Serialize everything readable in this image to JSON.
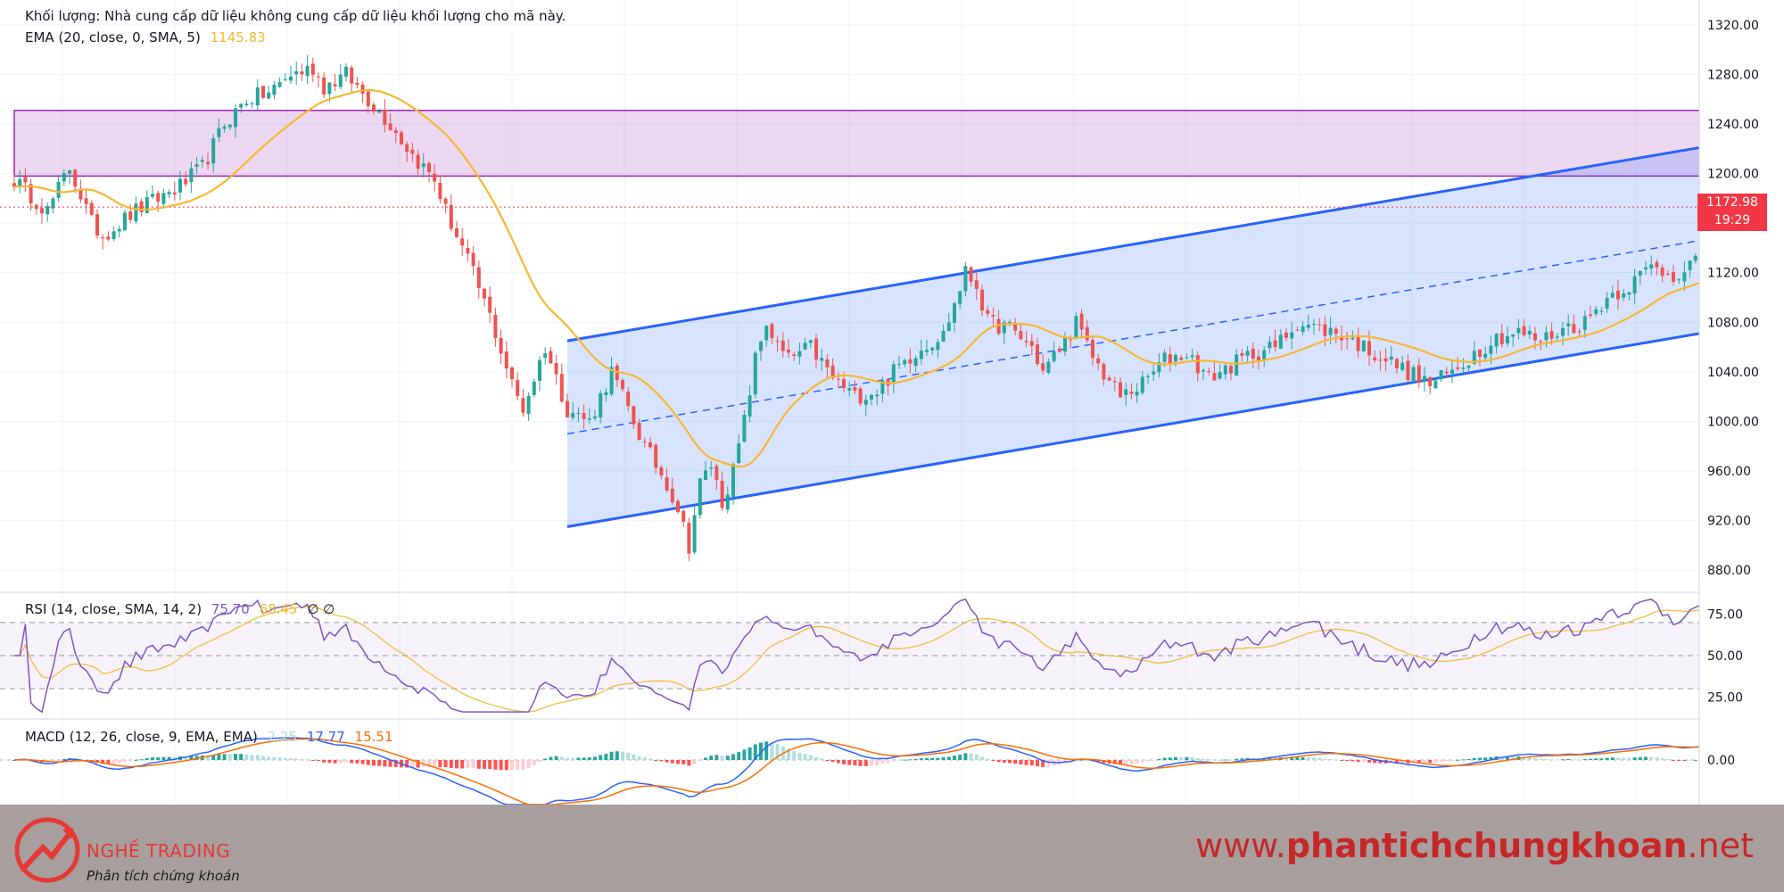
{
  "header": {
    "volume_notice": "Khối lượng: Nhà cung cấp dữ liệu không cung cấp dữ liệu khối lượng cho mã này.",
    "ema_label": "EMA (20, close, 0, SMA, 5)",
    "ema_value": "1145.83"
  },
  "rsi_header": {
    "label": "RSI (14, close, SMA, 14, 2)",
    "rsi_value": "75.70",
    "ma_value": "68.45",
    "extra": "∅  ∅"
  },
  "macd_header": {
    "label": "MACD (12, 26, close, 9, EMA, EMA)",
    "hist_value": "2.25",
    "macd_value": "17.77",
    "signal_value": "15.51"
  },
  "price_label": {
    "price": "1172.98",
    "countdown": "19:29"
  },
  "footer": {
    "brand": "NGHỀ TRADING",
    "tagline": "Phân tích chứng khoán",
    "website_prefix": "www.",
    "website_bold": "phantichchungkhoan",
    "website_suffix": ".net"
  },
  "colors": {
    "up": "#26a69a",
    "down": "#ef5350",
    "ema": "#f7b731",
    "channel": "#2962ff",
    "zone": "#9c27b0",
    "rsi": "#7e57c2",
    "macd": "#2962ff",
    "signal": "#ff6d00"
  },
  "chart_data": [
    {
      "type": "candlestick",
      "ylim": [
        865,
        1330
      ],
      "y_ticks": [
        "1320.00",
        "1280.00",
        "1240.00",
        "1200.00",
        "1160.00",
        "1120.00",
        "1080.00",
        "1040.00",
        "1000.00",
        "960.00",
        "920.00",
        "880.00"
      ],
      "anchors": [
        [
          0,
          1195
        ],
        [
          6,
          1170
        ],
        [
          10,
          1205
        ],
        [
          14,
          1160
        ],
        [
          16,
          1150
        ],
        [
          22,
          1170
        ],
        [
          26,
          1180
        ],
        [
          30,
          1190
        ],
        [
          34,
          1205
        ],
        [
          38,
          1240
        ],
        [
          42,
          1260
        ],
        [
          46,
          1265
        ],
        [
          50,
          1280
        ],
        [
          54,
          1285
        ],
        [
          56,
          1270
        ],
        [
          60,
          1280
        ],
        [
          64,
          1260
        ],
        [
          68,
          1240
        ],
        [
          72,
          1215
        ],
        [
          76,
          1195
        ],
        [
          78,
          1170
        ],
        [
          82,
          1130
        ],
        [
          86,
          1085
        ],
        [
          90,
          1030
        ],
        [
          92,
          1010
        ],
        [
          96,
          1060
        ],
        [
          100,
          1010
        ],
        [
          104,
          1000
        ],
        [
          108,
          1040
        ],
        [
          110,
          1020
        ],
        [
          114,
          980
        ],
        [
          118,
          950
        ],
        [
          120,
          930
        ],
        [
          122,
          900
        ],
        [
          124,
          950
        ],
        [
          126,
          965
        ],
        [
          128,
          935
        ],
        [
          130,
          960
        ],
        [
          132,
          1000
        ],
        [
          134,
          1050
        ],
        [
          136,
          1080
        ],
        [
          138,
          1060
        ],
        [
          140,
          1050
        ],
        [
          144,
          1060
        ],
        [
          148,
          1035
        ],
        [
          152,
          1020
        ],
        [
          156,
          1025
        ],
        [
          160,
          1045
        ],
        [
          164,
          1060
        ],
        [
          168,
          1070
        ],
        [
          172,
          1120
        ],
        [
          174,
          1110
        ],
        [
          176,
          1080
        ],
        [
          180,
          1075
        ],
        [
          184,
          1060
        ],
        [
          186,
          1040
        ],
        [
          190,
          1065
        ],
        [
          192,
          1080
        ],
        [
          194,
          1060
        ],
        [
          196,
          1045
        ],
        [
          200,
          1020
        ],
        [
          204,
          1030
        ],
        [
          208,
          1050
        ],
        [
          212,
          1055
        ],
        [
          216,
          1035
        ],
        [
          220,
          1045
        ],
        [
          224,
          1055
        ],
        [
          228,
          1060
        ],
        [
          232,
          1080
        ],
        [
          236,
          1075
        ],
        [
          240,
          1070
        ],
        [
          244,
          1060
        ],
        [
          248,
          1050
        ],
        [
          252,
          1040
        ],
        [
          256,
          1030
        ],
        [
          260,
          1040
        ],
        [
          264,
          1055
        ],
        [
          268,
          1068
        ],
        [
          272,
          1072
        ],
        [
          276,
          1065
        ],
        [
          280,
          1075
        ],
        [
          284,
          1080
        ],
        [
          288,
          1100
        ],
        [
          292,
          1110
        ],
        [
          296,
          1125
        ],
        [
          300,
          1118
        ],
        [
          304,
          1130
        ],
        [
          308,
          1130
        ],
        [
          312,
          1140
        ],
        [
          316,
          1130
        ],
        [
          320,
          1135
        ],
        [
          322,
          1148
        ],
        [
          326,
          1158
        ],
        [
          328,
          1165
        ],
        [
          329,
          1172.98
        ]
      ],
      "ema_period": 20,
      "channel": {
        "upper": [
          [
            100,
            1065
          ],
          [
            356,
            1260
          ]
        ],
        "lower": [
          [
            100,
            915
          ],
          [
            356,
            1110
          ]
        ],
        "mid": [
          [
            100,
            990
          ],
          [
            356,
            1185
          ]
        ],
        "fill_x_range": [
          100,
          356
        ]
      },
      "zone": {
        "x_range": [
          0,
          356
        ],
        "y_range": [
          1198,
          1251
        ]
      },
      "last_price": 1172.98,
      "ema_last": 1145.83
    },
    {
      "type": "line",
      "name": "RSI",
      "ylim": [
        15,
        85
      ],
      "y_ticks": [
        "75.00",
        "50.00",
        "25.00"
      ],
      "levels": [
        70,
        50,
        30
      ],
      "rsi_last": 75.7,
      "ma_last": 68.45
    },
    {
      "type": "bar",
      "name": "MACD",
      "y_ticks": [
        "0.00"
      ],
      "macd_last": 17.77,
      "signal_last": 15.51,
      "hist_last": 2.25
    }
  ]
}
